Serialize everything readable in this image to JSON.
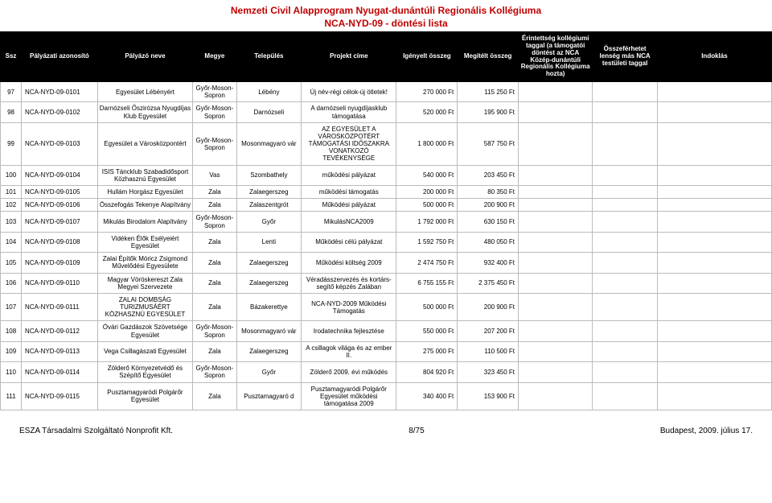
{
  "title_line1": "Nemzeti Civil Alapprogram Nyugat-dunántúli Regionális Kollégiuma",
  "title_line2": "NCA-NYD-09 - döntési lista",
  "columns": {
    "ssz": "Ssz",
    "azonosito": "Pályázati azonosító",
    "nev": "Pályázó neve",
    "megye": "Megye",
    "telepules": "Település",
    "cim": "Projekt címe",
    "igenyelt": "Igényelt összeg",
    "megitelt": "Megítélt összeg",
    "erintettseg": "Érintettség kollégiumi taggal (a támogatói döntést az NCA Közép-dunántúli Regionális Kollégiuma hozta)",
    "osszeferhetet": "Összeférhetet lenség más NCA testületi taggal",
    "indoklas": "Indoklás"
  },
  "rows": [
    {
      "ssz": "97",
      "az": "NCA-NYD-09-0101",
      "nev": "Egyesület Lébényért",
      "megye": "Győr-Moson-Sopron",
      "tel": "Lébény",
      "cim": "Új név-régi célok-új ötletek!",
      "ig": "270 000 Ft",
      "meg": "115 250 Ft"
    },
    {
      "ssz": "98",
      "az": "NCA-NYD-09-0102",
      "nev": "Darnózseli Őszirózsa Nyugdíjas Klub Egyesület",
      "megye": "Győr-Moson-Sopron",
      "tel": "Darnózseli",
      "cim": "A darnózseli nyugdíjasklub támogatása",
      "ig": "520 000 Ft",
      "meg": "195 900 Ft"
    },
    {
      "ssz": "99",
      "az": "NCA-NYD-09-0103",
      "nev": "Egyesület a Városközpontért",
      "megye": "Győr-Moson-Sopron",
      "tel": "Mosonmagyaró vár",
      "cim": "AZ EGYESÜLET A VÁROSKÖZPOTÉRT TÁMOGATÁSI IDŐSZAKRA VONATKOZÓ TEVÉKENYSÉGE",
      "ig": "1 800 000 Ft",
      "meg": "587 750 Ft"
    },
    {
      "ssz": "100",
      "az": "NCA-NYD-09-0104",
      "nev": "ISIS Táncklub Szabadidősport Közhasznú Egyesület",
      "megye": "Vas",
      "tel": "Szombathely",
      "cim": "működési pályázat",
      "ig": "540 000 Ft",
      "meg": "203 450 Ft"
    },
    {
      "ssz": "101",
      "az": "NCA-NYD-09-0105",
      "nev": "Hullám Horgász Egyesület",
      "megye": "Zala",
      "tel": "Zalaegerszeg",
      "cim": "működési támogatás",
      "ig": "200 000 Ft",
      "meg": "80 350 Ft"
    },
    {
      "ssz": "102",
      "az": "NCA-NYD-09-0106",
      "nev": "Összefogás Tekenye Alapítvány",
      "megye": "Zala",
      "tel": "Zalaszentgrót",
      "cim": "Működési pályázat",
      "ig": "500 000 Ft",
      "meg": "200 900 Ft"
    },
    {
      "ssz": "103",
      "az": "NCA-NYD-09-0107",
      "nev": "Mikulás Birodalom Alapítvány",
      "megye": "Győr-Moson-Sopron",
      "tel": "Győr",
      "cim": "MikulásNCA2009",
      "ig": "1 792 000 Ft",
      "meg": "630 150 Ft"
    },
    {
      "ssz": "104",
      "az": "NCA-NYD-09-0108",
      "nev": "Vidéken Élők Esélyeiért Egyesület",
      "megye": "Zala",
      "tel": "Lenti",
      "cim": "Működési célú pályázat",
      "ig": "1 592 750 Ft",
      "meg": "480 050 Ft"
    },
    {
      "ssz": "105",
      "az": "NCA-NYD-09-0109",
      "nev": "Zalai Építők Móricz Zsigmond Művelődési Egyesülete",
      "megye": "Zala",
      "tel": "Zalaegerszeg",
      "cim": "Működési költség 2009",
      "ig": "2 474 750 Ft",
      "meg": "932 400 Ft"
    },
    {
      "ssz": "106",
      "az": "NCA-NYD-09-0110",
      "nev": "Magyar Vöröskereszt Zala Megyei Szervezete",
      "megye": "Zala",
      "tel": "Zalaegerszeg",
      "cim": "Véradásszervezés és kortárs-segítő képzés Zalában",
      "ig": "6 755 155 Ft",
      "meg": "2 375 450 Ft"
    },
    {
      "ssz": "107",
      "az": "NCA-NYD-09-0111",
      "nev": "ZALAI DOMBSÁG TURIZMUSÁÉRT KÖZHASZNÚ EGYESÜLET",
      "megye": "Zala",
      "tel": "Bázakerettye",
      "cim": "NCA-NYD-2009 Működési Támogatás",
      "ig": "500 000 Ft",
      "meg": "200 900 Ft"
    },
    {
      "ssz": "108",
      "az": "NCA-NYD-09-0112",
      "nev": "Óvári Gazdászok Szövetsége Egyesület",
      "megye": "Győr-Moson-Sopron",
      "tel": "Mosonmagyaró vár",
      "cim": "Irodatechnika fejlesztése",
      "ig": "550 000 Ft",
      "meg": "207 200 Ft"
    },
    {
      "ssz": "109",
      "az": "NCA-NYD-09-0113",
      "nev": "Vega Csillagászati Egyesület",
      "megye": "Zala",
      "tel": "Zalaegerszeg",
      "cim": "A csillagok világa és az ember II.",
      "ig": "275 000 Ft",
      "meg": "110 500 Ft"
    },
    {
      "ssz": "110",
      "az": "NCA-NYD-09-0114",
      "nev": "Zölderő Környezetvédő és Szépítő Egyesület",
      "megye": "Győr-Moson-Sopron",
      "tel": "Győr",
      "cim": "Zölderő 2009. évi működés",
      "ig": "804 920 Ft",
      "meg": "323 450 Ft"
    },
    {
      "ssz": "111",
      "az": "NCA-NYD-09-0115",
      "nev": "Pusztamagyaródi Polgárőr Egyesület",
      "megye": "Zala",
      "tel": "Pusztamagyaró d",
      "cim": "Pusztamagyaródi Polgárőr Egyesület működési támogatása 2009",
      "ig": "340 400 Ft",
      "meg": "153 900 Ft"
    }
  ],
  "footer_left": "ESZA Társadalmi Szolgáltató Nonprofit Kft.",
  "footer_center": "8/75",
  "footer_right": "Budapest, 2009. július 17."
}
